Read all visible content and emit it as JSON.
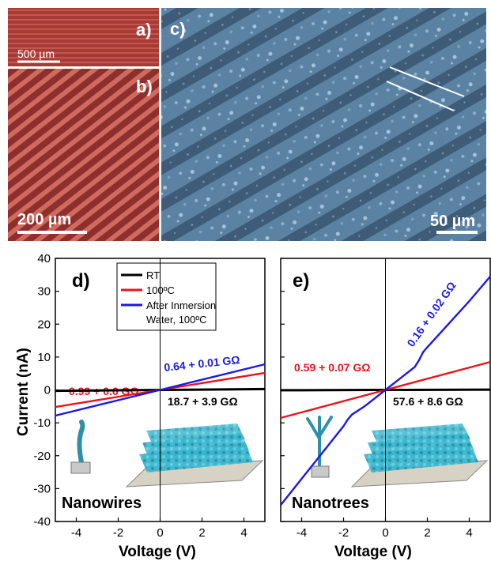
{
  "panels": {
    "a": "a)",
    "b": "b)",
    "c": "c)",
    "d": "d)",
    "e": "e)"
  },
  "scalebars": {
    "a": "500 µm",
    "b": "200 µm",
    "c": "50 µm"
  },
  "colors": {
    "rt": "#000000",
    "t100": "#e8141c",
    "water": "#1a1ae6",
    "optical_bg": "#b0443e",
    "sem_bg": "#5f86a8",
    "nanostructure": "#3bb6cf"
  },
  "icons": [
    "nanowire-icon",
    "nanotree-icon",
    "nanowire-array-icon",
    "nanotree-array-icon"
  ],
  "chart_data": [
    {
      "type": "line",
      "panel": "d)",
      "xlabel": "Voltage (V)",
      "ylabel": "Current (nA)",
      "xlim": [
        -5,
        5
      ],
      "ylim": [
        -40,
        40
      ],
      "xticks": [
        -4,
        -2,
        0,
        2,
        4
      ],
      "yticks": [
        -40,
        -30,
        -20,
        -10,
        0,
        10,
        20,
        30,
        40
      ],
      "legend": {
        "placement": "top-center",
        "entries": [
          "RT",
          "100ºC",
          "After Inmersion",
          "Water, 100ºC"
        ]
      },
      "series": [
        {
          "name": "RT",
          "color": "#000000",
          "x": [
            -5,
            5
          ],
          "y": [
            -0.27,
            0.27
          ]
        },
        {
          "name": "100ºC",
          "color": "#e8141c",
          "x": [
            -5,
            0,
            5
          ],
          "y": [
            -5.2,
            0,
            5.2
          ]
        },
        {
          "name": "After Inmersion Water, 100ºC",
          "color": "#1a1ae6",
          "x": [
            -5,
            0,
            5
          ],
          "y": [
            -7.8,
            0,
            7.8
          ]
        }
      ],
      "annotations": [
        {
          "text": "0.99 + 0.6 GΩ",
          "color": "#e8141c"
        },
        {
          "text": "0.64 + 0.01 GΩ",
          "color": "#1a1ae6"
        },
        {
          "text": "18.7 + 3.9 GΩ",
          "color": "#000000"
        },
        {
          "text": "Nanowires",
          "color": "#000000"
        }
      ]
    },
    {
      "type": "line",
      "panel": "e)",
      "xlabel": "Voltage (V)",
      "ylabel": "",
      "xlim": [
        -5,
        5
      ],
      "ylim": [
        -40,
        40
      ],
      "xticks": [
        -4,
        -2,
        0,
        2,
        4
      ],
      "series": [
        {
          "name": "RT",
          "color": "#000000",
          "x": [
            -5,
            5
          ],
          "y": [
            -0.09,
            0.09
          ]
        },
        {
          "name": "100ºC",
          "color": "#e8141c",
          "x": [
            -5,
            0,
            5
          ],
          "y": [
            -8.5,
            0,
            8.5
          ]
        },
        {
          "name": "After Inmersion Water, 100ºC",
          "color": "#1a1ae6",
          "x": [
            -5,
            -4,
            -3,
            -2,
            -1.8,
            -1.6,
            -1,
            0,
            1,
            1.4,
            1.6,
            1.8,
            2,
            3,
            4,
            5
          ],
          "y": [
            -35,
            -27,
            -19,
            -11,
            -9,
            -7.5,
            -5,
            0,
            5,
            7,
            9,
            11.5,
            13,
            20,
            27,
            34.5
          ]
        }
      ],
      "annotations": [
        {
          "text": "0.59 + 0.07 GΩ",
          "color": "#e8141c"
        },
        {
          "text": "0.16 + 0.02 GΩ",
          "color": "#1a1ae6"
        },
        {
          "text": "57.6 + 8.6 GΩ",
          "color": "#000000"
        },
        {
          "text": "Nanotrees",
          "color": "#000000"
        }
      ]
    }
  ]
}
